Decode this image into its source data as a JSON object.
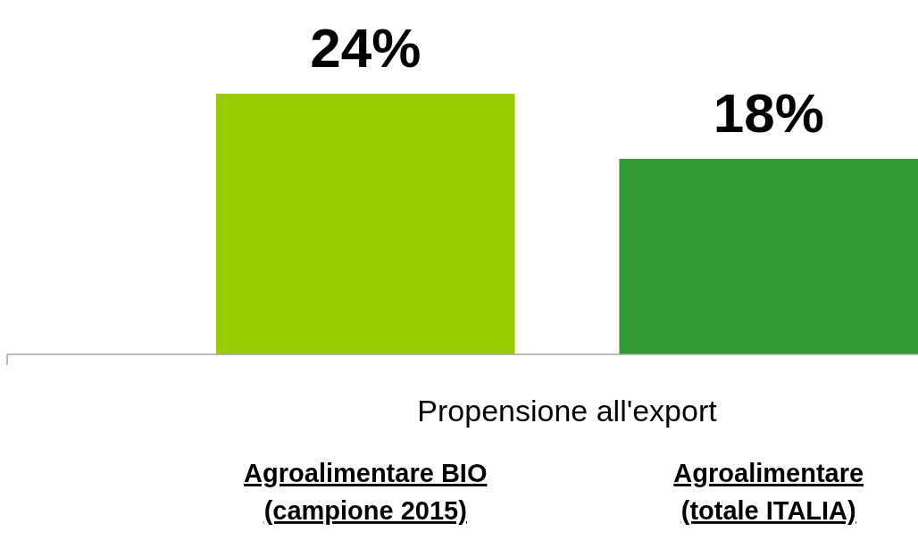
{
  "chart_data": {
    "type": "bar",
    "xlabel": "Propensione all'export",
    "categories": [
      "Agroalimentare BIO (campione 2015)",
      "Agroalimentare (totale ITALIA)"
    ],
    "values": [
      24,
      18
    ],
    "colors": [
      "#99cc00",
      "#339933"
    ],
    "value_labels": [
      "24%",
      "18%"
    ]
  }
}
